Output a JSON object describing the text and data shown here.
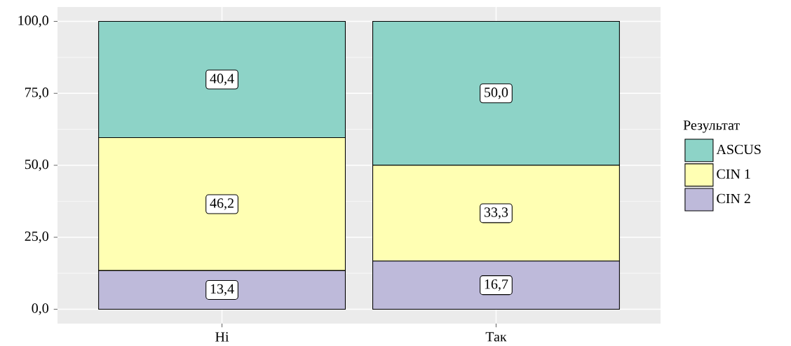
{
  "chart_data": {
    "type": "bar",
    "stacked": true,
    "categories": [
      "Ні",
      "Так"
    ],
    "series": [
      {
        "name": "CIN 2",
        "color": "#bebada",
        "values": [
          13.4,
          16.7
        ],
        "value_labels": [
          "13,4",
          "16,7"
        ]
      },
      {
        "name": "CIN 1",
        "color": "#ffffb3",
        "values": [
          46.2,
          33.3
        ],
        "value_labels": [
          "46,2",
          "33,3"
        ]
      },
      {
        "name": "ASCUS",
        "color": "#8dd3c7",
        "values": [
          40.4,
          50.0
        ],
        "value_labels": [
          "40,4",
          "50,0"
        ]
      }
    ],
    "ylim": [
      -5,
      105
    ],
    "yticks": [
      {
        "value": 0,
        "label": "0,0"
      },
      {
        "value": 25,
        "label": "25,0"
      },
      {
        "value": 50,
        "label": "50,0"
      },
      {
        "value": 75,
        "label": "75,0"
      },
      {
        "value": 100,
        "label": "100,0"
      }
    ],
    "grid": true,
    "legend": "right",
    "legend_title": "Результат"
  }
}
